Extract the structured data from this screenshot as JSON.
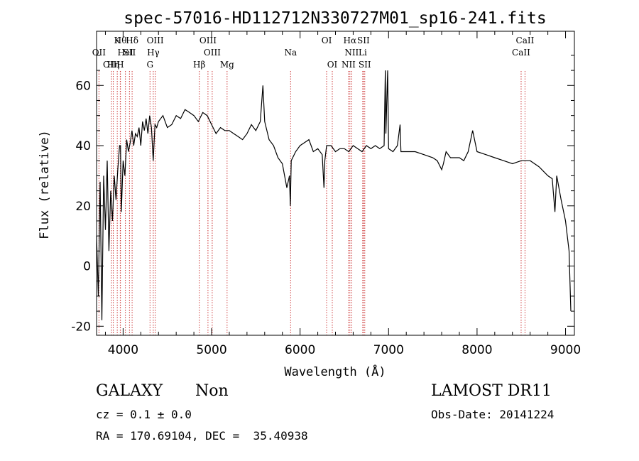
{
  "chart_data": {
    "type": "line",
    "title": "spec-57016-HD112712N330727M01_sp16-241.fits",
    "xlabel": "Wavelength (Å)",
    "ylabel": "Flux (relative)",
    "xlim": [
      3700,
      9100
    ],
    "ylim": [
      -23,
      78
    ],
    "xticks": [
      4000,
      5000,
      6000,
      7000,
      8000,
      9000
    ],
    "yticks": [
      -20,
      0,
      20,
      40,
      60
    ],
    "line_color": "#000000",
    "marker_color": "#cc3333",
    "series": [
      {
        "x": [
          3700,
          3720,
          3740,
          3760,
          3780,
          3800,
          3820,
          3840,
          3860,
          3880,
          3900,
          3920,
          3940,
          3960,
          3970,
          3980,
          4000,
          4020,
          4040,
          4060,
          4080,
          4100,
          4120,
          4140,
          4160,
          4180,
          4200,
          4220,
          4240,
          4260,
          4280,
          4300,
          4320,
          4340,
          4360,
          4380,
          4400,
          4450,
          4500,
          4550,
          4600,
          4650,
          4700,
          4750,
          4800,
          4850,
          4900,
          4950,
          5000,
          5050,
          5100,
          5150,
          5200,
          5250,
          5300,
          5350,
          5400,
          5450,
          5500,
          5550,
          5580,
          5600,
          5650,
          5700,
          5750,
          5800,
          5850,
          5880,
          5890,
          5900,
          5950,
          6000,
          6050,
          6100,
          6150,
          6200,
          6250,
          6270,
          6280,
          6300,
          6350,
          6400,
          6450,
          6500,
          6550,
          6600,
          6650,
          6700,
          6750,
          6800,
          6850,
          6900,
          6950,
          6963,
          6970,
          6990,
          7000,
          7050,
          7100,
          7130,
          7140,
          7200,
          7300,
          7400,
          7500,
          7550,
          7600,
          7620,
          7650,
          7700,
          7750,
          7800,
          7850,
          7900,
          7950,
          8000,
          8100,
          8200,
          8300,
          8400,
          8500,
          8600,
          8700,
          8800,
          8850,
          8880,
          8900,
          8950,
          9000,
          9020,
          9040,
          9060
        ],
        "y": [
          10,
          -10,
          28,
          -18,
          30,
          12,
          35,
          5,
          25,
          15,
          30,
          22,
          32,
          40,
          40,
          18,
          35,
          30,
          42,
          38,
          41,
          45,
          40,
          44,
          43,
          46,
          40,
          48,
          45,
          49,
          44,
          50,
          46,
          35,
          47,
          46,
          48,
          50,
          46,
          47,
          50,
          49,
          52,
          51,
          50,
          48,
          51,
          50,
          47,
          44,
          46,
          45,
          45,
          44,
          43,
          42,
          44,
          47,
          45,
          48,
          60,
          48,
          42,
          40,
          36,
          34,
          26,
          30,
          20,
          35,
          38,
          40,
          41,
          42,
          38,
          39,
          37,
          26,
          35,
          40,
          40,
          38,
          39,
          39,
          38,
          40,
          39,
          38,
          40,
          39,
          40,
          39,
          40,
          65,
          44,
          65,
          39,
          38,
          40,
          47,
          38,
          38,
          38,
          37,
          36,
          35,
          32,
          34,
          38,
          36,
          36,
          36,
          35,
          38,
          45,
          38,
          37,
          36,
          35,
          34,
          35,
          35,
          33,
          30,
          29,
          18,
          30,
          22,
          15,
          10,
          5,
          -15
        ]
      }
    ],
    "lines": [
      {
        "label": "OII",
        "wl": 3727,
        "row": 1
      },
      {
        "label": "OIII",
        "wl": 3869,
        "row": 2
      },
      {
        "label": "Hη",
        "wl": 3889,
        "row": 2
      },
      {
        "label": "Hθ",
        "wl": 3970,
        "row": 0
      },
      {
        "label": "HeI",
        "wl": 4026,
        "row": 1
      },
      {
        "label": "K",
        "wl": 3934,
        "row": 0
      },
      {
        "label": "H",
        "wl": 3968,
        "row": 2
      },
      {
        "label": "SII",
        "wl": 4072,
        "row": 1
      },
      {
        "label": "Hδ",
        "wl": 4102,
        "row": 0
      },
      {
        "label": "OIII",
        "wl": 4363,
        "row": 0
      },
      {
        "label": "Hγ",
        "wl": 4341,
        "row": 1
      },
      {
        "label": "G",
        "wl": 4304,
        "row": 2
      },
      {
        "label": "Hβ",
        "wl": 4861,
        "row": 2
      },
      {
        "label": "OIII",
        "wl": 4959,
        "row": 0
      },
      {
        "label": "OIII",
        "wl": 5007,
        "row": 1
      },
      {
        "label": "Mg",
        "wl": 5175,
        "row": 2
      },
      {
        "label": "Na",
        "wl": 5893,
        "row": 1
      },
      {
        "label": "OI",
        "wl": 6300,
        "row": 0
      },
      {
        "label": "OI",
        "wl": 6364,
        "row": 2
      },
      {
        "label": "Hα",
        "wl": 6563,
        "row": 0
      },
      {
        "label": "NII",
        "wl": 6583,
        "row": 1
      },
      {
        "label": "NII",
        "wl": 6548,
        "row": 2
      },
      {
        "label": "SII",
        "wl": 6716,
        "row": 0
      },
      {
        "label": "Li",
        "wl": 6708,
        "row": 1
      },
      {
        "label": "SII",
        "wl": 6731,
        "row": 2
      },
      {
        "label": "CaII",
        "wl": 8542,
        "row": 0
      },
      {
        "label": "CaII",
        "wl": 8498,
        "row": 1
      }
    ]
  },
  "info": {
    "class": "GALAXY",
    "subclass": "Non",
    "survey": "LAMOST DR11",
    "cz": "cz = 0.1 ± 0.0",
    "obsdate": "Obs-Date: 20141224",
    "radec": "RA = 170.69104, DEC =  35.40938"
  }
}
